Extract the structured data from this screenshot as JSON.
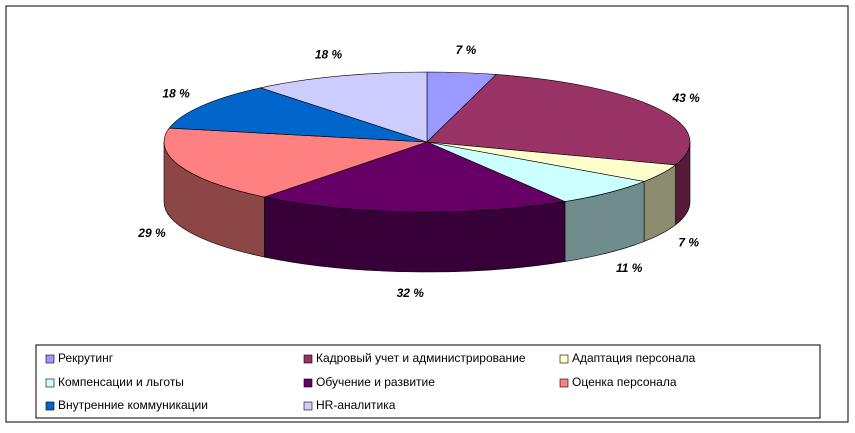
{
  "chart_data": {
    "type": "pie",
    "categories": [
      "Рекрутинг",
      "Кадровый учет и администрирование",
      "Адаптация персонала",
      "Компенсации и льготы",
      "Обучение и развитие",
      "Оценка персонала",
      "Внутренние коммуникации",
      "HR-аналитика"
    ],
    "values": [
      7,
      43,
      7,
      11,
      32,
      29,
      18,
      18
    ],
    "value_labels": [
      "7 %",
      "43 %",
      "7 %",
      "11 %",
      "32 %",
      "29 %",
      "18 %",
      "18 %"
    ],
    "colors": [
      "#9999ff",
      "#993366",
      "#ffffcc",
      "#ccffff",
      "#660066",
      "#ff8080",
      "#0066cc",
      "#ccccff"
    ],
    "legend": "bottom"
  }
}
